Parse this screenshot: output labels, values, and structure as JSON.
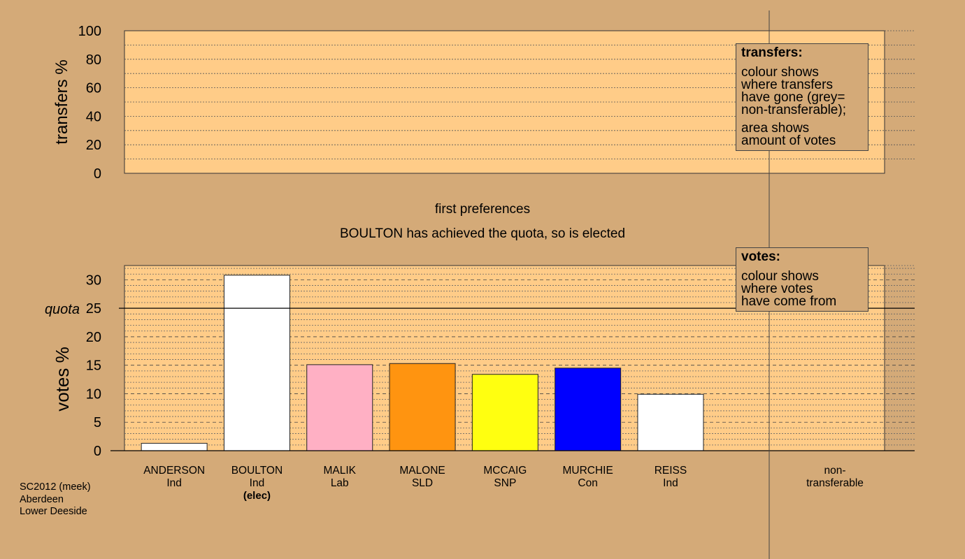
{
  "chart_data": [
    {
      "type": "area",
      "ylabel": "transfers %",
      "ylim": [
        0,
        100
      ],
      "yticks": [
        0,
        20,
        40,
        60,
        80,
        100
      ],
      "legend": {
        "placement": "top-right",
        "title": "transfers:",
        "lines": [
          [
            "colour shows",
            "where transfers",
            "have gone (grey=",
            "non-transferable);"
          ],
          [
            "area shows",
            "amount of votes"
          ]
        ]
      }
    },
    {
      "type": "bar",
      "title": "first preferences",
      "subtitle": "BOULTON has achieved the quota, so is elected",
      "ylabel": "votes %",
      "ylim": [
        0,
        32.5
      ],
      "yticks": [
        0,
        5,
        10,
        15,
        20,
        25,
        30
      ],
      "quota": {
        "label": "quota",
        "value": 25
      },
      "categories": [
        {
          "name": "ANDERSON",
          "party": "Ind",
          "note": ""
        },
        {
          "name": "BOULTON",
          "party": "Ind",
          "note": "(elec)"
        },
        {
          "name": "MALIK",
          "party": "Lab",
          "note": ""
        },
        {
          "name": "MALONE",
          "party": "SLD",
          "note": ""
        },
        {
          "name": "MCCAIG",
          "party": "SNP",
          "note": ""
        },
        {
          "name": "MURCHIE",
          "party": "Con",
          "note": ""
        },
        {
          "name": "REISS",
          "party": "Ind",
          "note": ""
        }
      ],
      "values": [
        1.3,
        30.8,
        15.1,
        15.3,
        13.4,
        14.5,
        9.9
      ],
      "colors": [
        "#ffffff",
        "#ffffff",
        "#ffb0c4",
        "#ff9410",
        "#ffff10",
        "#0000ff",
        "#ffffff"
      ],
      "nontransferable_label": [
        "non-",
        "transferable"
      ],
      "legend": {
        "placement": "top-right",
        "title": "votes:",
        "lines": [
          [
            "colour shows",
            "where votes",
            "have come from"
          ]
        ]
      }
    }
  ],
  "footer": {
    "lines": [
      "SC2012 (meek)",
      "Aberdeen",
      "Lower Deeside"
    ]
  }
}
